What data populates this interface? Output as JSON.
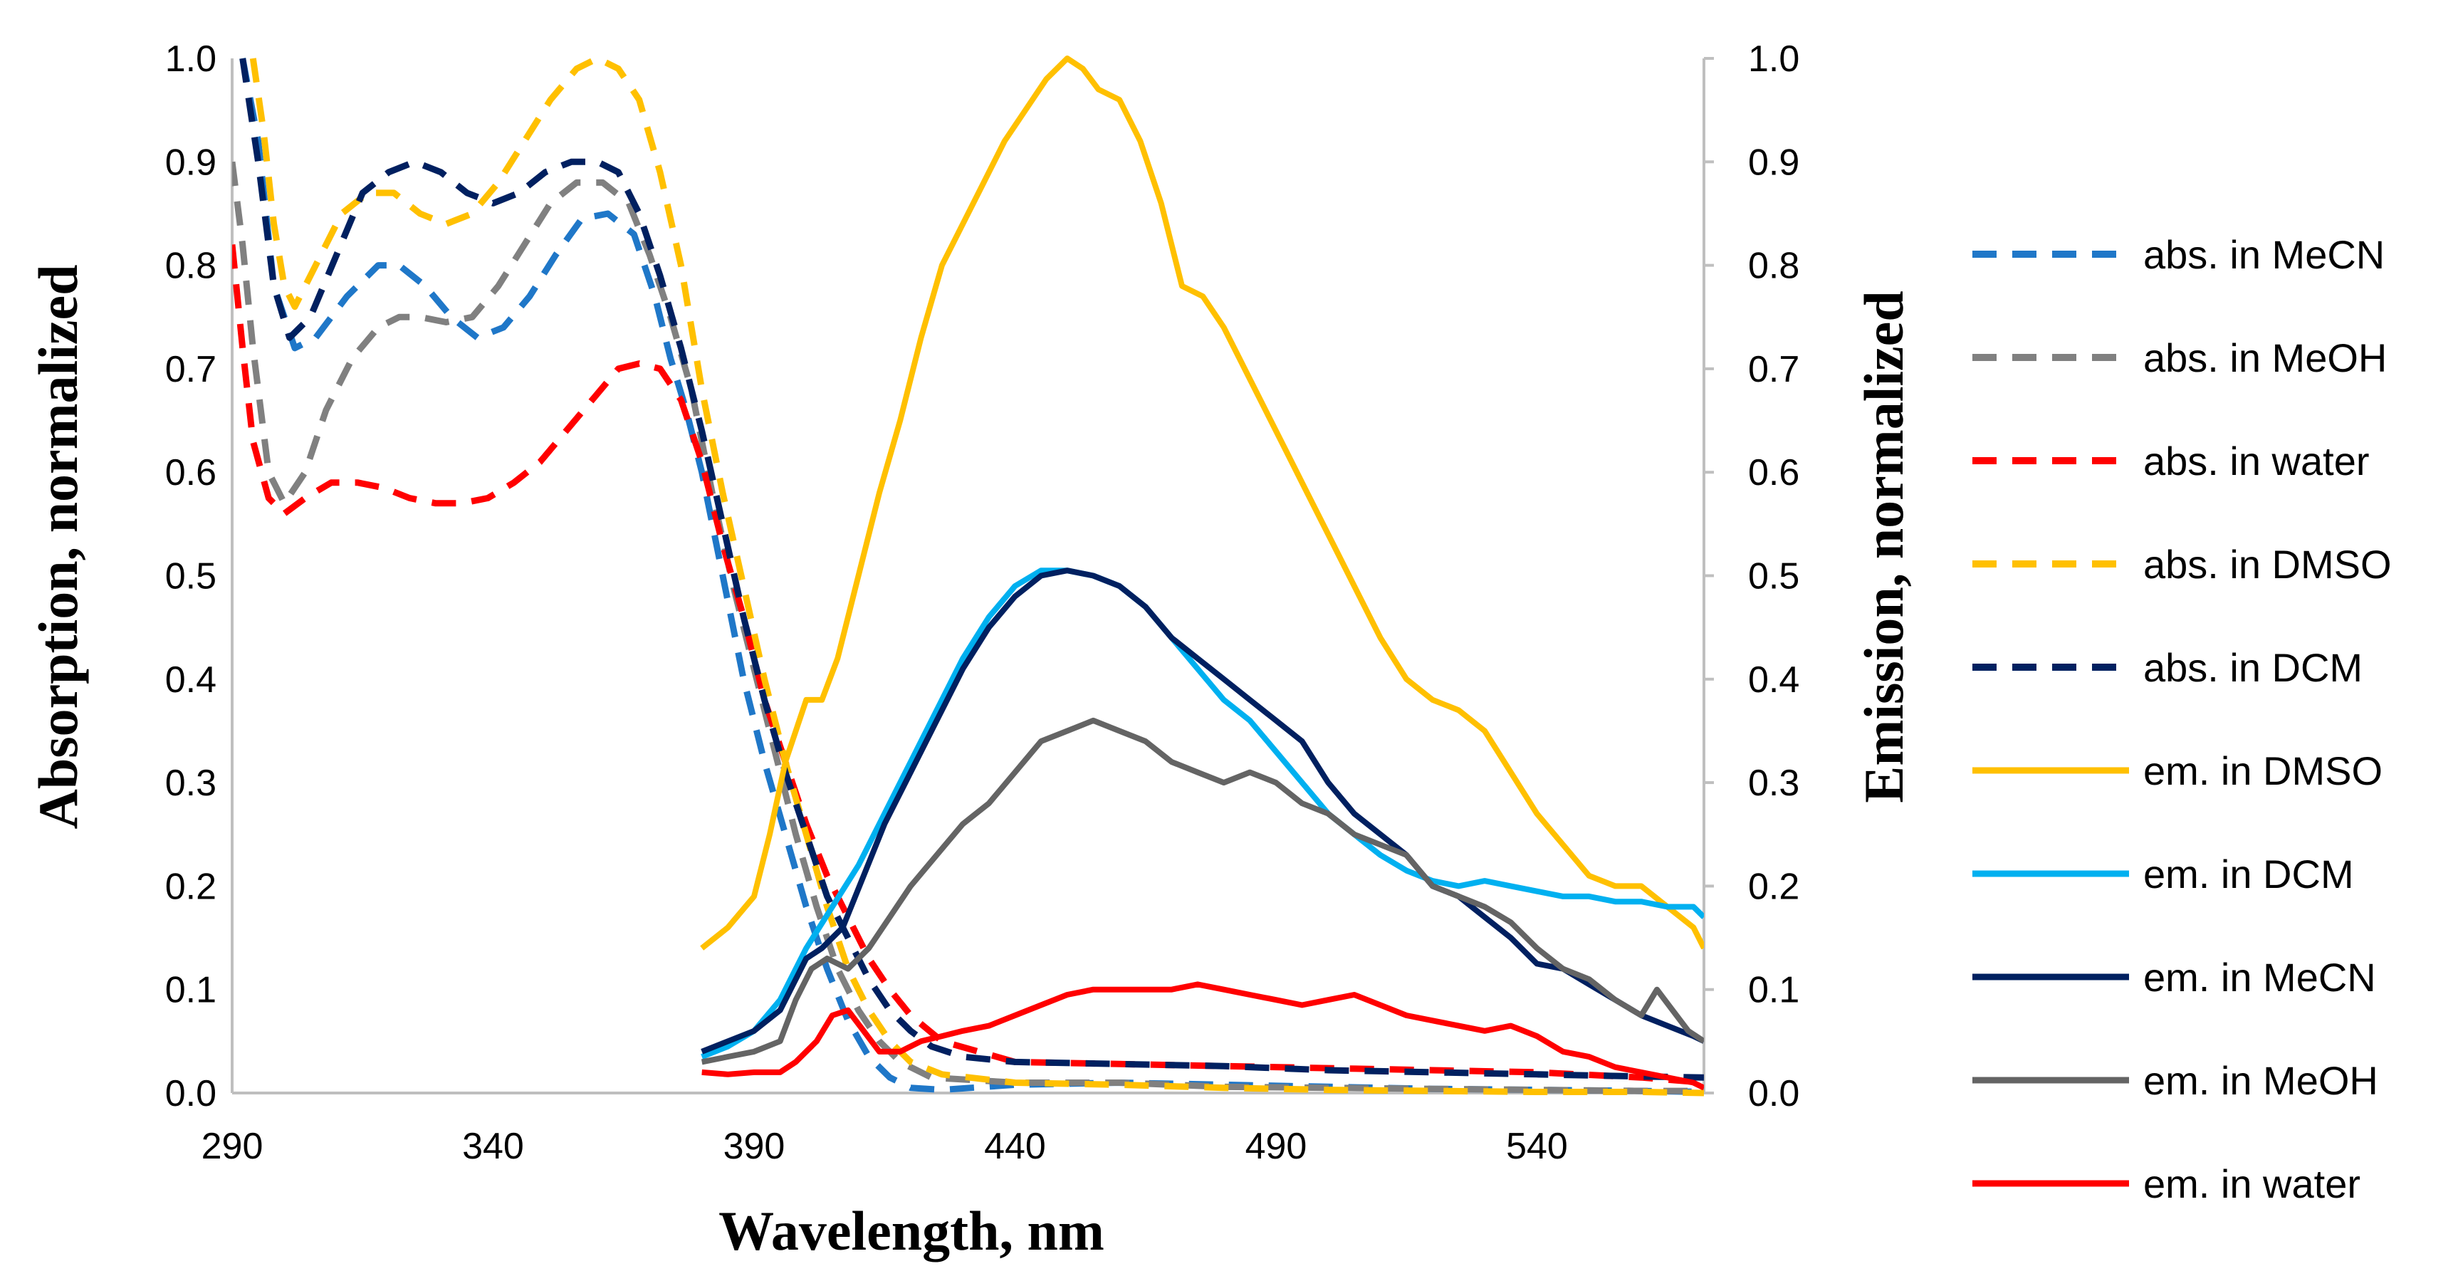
{
  "chart_data": {
    "type": "line",
    "title": "",
    "xlabel": "Wavelength, nm",
    "ylabel": "Absorption, normalized",
    "y2label": "Emission, normalized",
    "xlim": [
      290,
      572
    ],
    "ylim": [
      0,
      1.0
    ],
    "y2lim": [
      0,
      1.0
    ],
    "xticks": [
      "290",
      "340",
      "390",
      "440",
      "490",
      "540"
    ],
    "yticks": [
      "0.0",
      "0.1",
      "0.2",
      "0.3",
      "0.4",
      "0.5",
      "0.6",
      "0.7",
      "0.8",
      "0.9",
      "1.0"
    ],
    "grid": false,
    "legend_position": "right",
    "series": [
      {
        "name": "abs. in MeCN",
        "style": "dashed",
        "color": "#1F77C8",
        "x": [
          292,
          295,
          298,
          302,
          306,
          312,
          318,
          322,
          327,
          332,
          337,
          342,
          347,
          352,
          357,
          362,
          367,
          371,
          374,
          377,
          380,
          384,
          388,
          392,
          396,
          400,
          404,
          408,
          412,
          416,
          420,
          426,
          440,
          460,
          480,
          500,
          520,
          540,
          560,
          572
        ],
        "y": [
          1.0,
          0.92,
          0.78,
          0.72,
          0.73,
          0.77,
          0.8,
          0.8,
          0.78,
          0.75,
          0.73,
          0.74,
          0.77,
          0.81,
          0.845,
          0.85,
          0.83,
          0.77,
          0.71,
          0.66,
          0.6,
          0.5,
          0.4,
          0.32,
          0.25,
          0.18,
          0.12,
          0.07,
          0.035,
          0.015,
          0.005,
          0.003,
          0.008,
          0.01,
          0.008,
          0.006,
          0.004,
          0.003,
          0.002,
          0.001
        ]
      },
      {
        "name": "abs. in MeOH",
        "style": "dashed",
        "color": "#808080",
        "x": [
          290,
          292,
          294,
          297,
          300,
          304,
          308,
          313,
          318,
          322,
          326,
          331,
          336,
          341,
          346,
          351,
          356,
          361,
          366,
          370,
          374,
          378,
          382,
          386,
          390,
          394,
          398,
          402,
          406,
          410,
          414,
          418,
          424,
          440,
          460,
          480,
          500,
          520,
          540,
          560,
          572
        ],
        "y": [
          0.9,
          0.82,
          0.72,
          0.6,
          0.57,
          0.6,
          0.66,
          0.71,
          0.74,
          0.75,
          0.75,
          0.745,
          0.75,
          0.78,
          0.82,
          0.86,
          0.88,
          0.88,
          0.86,
          0.81,
          0.75,
          0.68,
          0.58,
          0.49,
          0.41,
          0.33,
          0.25,
          0.18,
          0.12,
          0.08,
          0.05,
          0.03,
          0.015,
          0.01,
          0.01,
          0.006,
          0.005,
          0.004,
          0.003,
          0.002,
          0.002
        ]
      },
      {
        "name": "abs. in water",
        "style": "dashed",
        "color": "#FF0000",
        "x": [
          290,
          292,
          294,
          297,
          300,
          304,
          309,
          314,
          319,
          324,
          329,
          334,
          339,
          344,
          349,
          354,
          359,
          364,
          368,
          372,
          376,
          380,
          384,
          388,
          392,
          396,
          400,
          404,
          408,
          412,
          416,
          420,
          426,
          440,
          460,
          480,
          500,
          520,
          540,
          560,
          572
        ],
        "y": [
          0.82,
          0.72,
          0.63,
          0.575,
          0.56,
          0.575,
          0.59,
          0.59,
          0.585,
          0.575,
          0.57,
          0.57,
          0.575,
          0.59,
          0.61,
          0.64,
          0.67,
          0.7,
          0.705,
          0.7,
          0.67,
          0.61,
          0.53,
          0.46,
          0.38,
          0.32,
          0.26,
          0.21,
          0.17,
          0.13,
          0.1,
          0.075,
          0.05,
          0.03,
          0.028,
          0.026,
          0.024,
          0.022,
          0.02,
          0.015,
          0.01
        ]
      },
      {
        "name": "abs. in DMSO",
        "style": "dashed",
        "color": "#FFC000",
        "x": [
          294,
          296,
          298,
          300,
          302,
          306,
          311,
          316,
          321,
          326,
          331,
          336,
          341,
          346,
          351,
          356,
          360,
          364,
          368,
          372,
          376,
          380,
          384,
          388,
          392,
          396,
          400,
          404,
          408,
          412,
          416,
          420,
          426,
          440,
          460,
          480,
          500,
          520,
          540,
          560,
          572
        ],
        "y": [
          1.0,
          0.93,
          0.84,
          0.78,
          0.76,
          0.8,
          0.85,
          0.87,
          0.87,
          0.85,
          0.84,
          0.85,
          0.88,
          0.92,
          0.96,
          0.99,
          1.0,
          0.99,
          0.96,
          0.89,
          0.8,
          0.68,
          0.58,
          0.49,
          0.4,
          0.32,
          0.25,
          0.18,
          0.12,
          0.08,
          0.05,
          0.03,
          0.018,
          0.01,
          0.008,
          0.005,
          0.003,
          0.002,
          0.001,
          0.001,
          0.0
        ]
      },
      {
        "name": "abs. in DCM",
        "style": "dashed",
        "color": "#002060",
        "x": [
          292,
          295,
          298,
          301,
          305,
          310,
          315,
          320,
          325,
          330,
          335,
          340,
          345,
          350,
          355,
          360,
          364,
          368,
          372,
          376,
          380,
          384,
          388,
          392,
          396,
          400,
          404,
          408,
          412,
          416,
          420,
          424,
          430,
          440,
          460,
          480,
          500,
          520,
          540,
          560,
          572
        ],
        "y": [
          1.0,
          0.9,
          0.78,
          0.73,
          0.75,
          0.81,
          0.87,
          0.89,
          0.9,
          0.89,
          0.87,
          0.86,
          0.87,
          0.89,
          0.9,
          0.9,
          0.89,
          0.85,
          0.79,
          0.72,
          0.64,
          0.55,
          0.46,
          0.38,
          0.31,
          0.25,
          0.19,
          0.15,
          0.11,
          0.08,
          0.06,
          0.045,
          0.035,
          0.03,
          0.028,
          0.026,
          0.022,
          0.02,
          0.018,
          0.016,
          0.015
        ]
      },
      {
        "name": "em. in DMSO",
        "style": "solid",
        "color": "#FFC000",
        "x": [
          380,
          385,
          390,
          393,
          396,
          400,
          403,
          406,
          410,
          414,
          418,
          422,
          426,
          430,
          434,
          438,
          442,
          446,
          450,
          453,
          456,
          460,
          464,
          468,
          472,
          476,
          480,
          484,
          488,
          492,
          496,
          500,
          505,
          510,
          515,
          520,
          525,
          530,
          535,
          540,
          545,
          550,
          555,
          560,
          565,
          570,
          572
        ],
        "y": [
          0.14,
          0.16,
          0.19,
          0.25,
          0.32,
          0.38,
          0.38,
          0.42,
          0.5,
          0.58,
          0.65,
          0.73,
          0.8,
          0.84,
          0.88,
          0.92,
          0.95,
          0.98,
          1.0,
          0.99,
          0.97,
          0.96,
          0.92,
          0.86,
          0.78,
          0.77,
          0.74,
          0.7,
          0.66,
          0.62,
          0.58,
          0.54,
          0.49,
          0.44,
          0.4,
          0.38,
          0.37,
          0.35,
          0.31,
          0.27,
          0.24,
          0.21,
          0.2,
          0.2,
          0.18,
          0.16,
          0.14
        ]
      },
      {
        "name": "em. in DCM",
        "style": "solid",
        "color": "#00B0F0",
        "x": [
          380,
          385,
          390,
          395,
          400,
          405,
          410,
          415,
          420,
          425,
          430,
          435,
          440,
          445,
          450,
          455,
          460,
          465,
          470,
          475,
          480,
          485,
          490,
          495,
          500,
          505,
          510,
          515,
          520,
          525,
          530,
          535,
          540,
          545,
          550,
          555,
          560,
          565,
          570,
          572
        ],
        "y": [
          0.035,
          0.045,
          0.06,
          0.09,
          0.14,
          0.18,
          0.22,
          0.27,
          0.32,
          0.37,
          0.42,
          0.46,
          0.49,
          0.505,
          0.505,
          0.5,
          0.49,
          0.47,
          0.44,
          0.41,
          0.38,
          0.36,
          0.33,
          0.3,
          0.27,
          0.25,
          0.23,
          0.215,
          0.205,
          0.2,
          0.205,
          0.2,
          0.195,
          0.19,
          0.19,
          0.185,
          0.185,
          0.18,
          0.18,
          0.17
        ]
      },
      {
        "name": "em. in MeCN",
        "style": "solid",
        "color": "#002060",
        "x": [
          380,
          385,
          390,
          395,
          400,
          403,
          407,
          411,
          415,
          420,
          425,
          430,
          435,
          440,
          445,
          450,
          455,
          460,
          465,
          470,
          475,
          480,
          485,
          490,
          495,
          500,
          505,
          510,
          515,
          520,
          525,
          530,
          535,
          540,
          545,
          550,
          555,
          560,
          565,
          570,
          572
        ],
        "y": [
          0.04,
          0.05,
          0.06,
          0.08,
          0.13,
          0.14,
          0.16,
          0.21,
          0.26,
          0.31,
          0.36,
          0.41,
          0.45,
          0.48,
          0.5,
          0.505,
          0.5,
          0.49,
          0.47,
          0.44,
          0.42,
          0.4,
          0.38,
          0.36,
          0.34,
          0.3,
          0.27,
          0.25,
          0.23,
          0.2,
          0.19,
          0.17,
          0.15,
          0.125,
          0.12,
          0.105,
          0.09,
          0.075,
          0.065,
          0.055,
          0.05
        ]
      },
      {
        "name": "em. in MeOH",
        "style": "solid",
        "color": "#646464",
        "x": [
          380,
          385,
          390,
          395,
          398,
          401,
          404,
          408,
          412,
          416,
          420,
          425,
          430,
          435,
          440,
          445,
          450,
          455,
          460,
          465,
          470,
          475,
          480,
          485,
          490,
          495,
          500,
          505,
          510,
          515,
          520,
          525,
          530,
          535,
          540,
          545,
          550,
          555,
          560,
          563,
          566,
          569,
          572
        ],
        "y": [
          0.03,
          0.035,
          0.04,
          0.05,
          0.09,
          0.12,
          0.13,
          0.12,
          0.14,
          0.17,
          0.2,
          0.23,
          0.26,
          0.28,
          0.31,
          0.34,
          0.35,
          0.36,
          0.35,
          0.34,
          0.32,
          0.31,
          0.3,
          0.31,
          0.3,
          0.28,
          0.27,
          0.25,
          0.24,
          0.23,
          0.2,
          0.19,
          0.18,
          0.165,
          0.14,
          0.12,
          0.11,
          0.09,
          0.075,
          0.1,
          0.08,
          0.06,
          0.05
        ]
      },
      {
        "name": "em. in water",
        "style": "solid",
        "color": "#FF0000",
        "x": [
          380,
          385,
          390,
          395,
          398,
          402,
          405,
          408,
          411,
          414,
          418,
          422,
          426,
          430,
          435,
          440,
          445,
          450,
          455,
          460,
          465,
          470,
          475,
          480,
          485,
          490,
          495,
          500,
          505,
          510,
          515,
          520,
          525,
          530,
          535,
          540,
          545,
          550,
          555,
          560,
          565,
          570,
          572
        ],
        "y": [
          0.02,
          0.018,
          0.02,
          0.02,
          0.03,
          0.05,
          0.075,
          0.08,
          0.06,
          0.04,
          0.04,
          0.05,
          0.055,
          0.06,
          0.065,
          0.075,
          0.085,
          0.095,
          0.1,
          0.1,
          0.1,
          0.1,
          0.105,
          0.1,
          0.095,
          0.09,
          0.085,
          0.09,
          0.095,
          0.085,
          0.075,
          0.07,
          0.065,
          0.06,
          0.065,
          0.055,
          0.04,
          0.035,
          0.025,
          0.02,
          0.015,
          0.01,
          0.005
        ]
      }
    ]
  }
}
